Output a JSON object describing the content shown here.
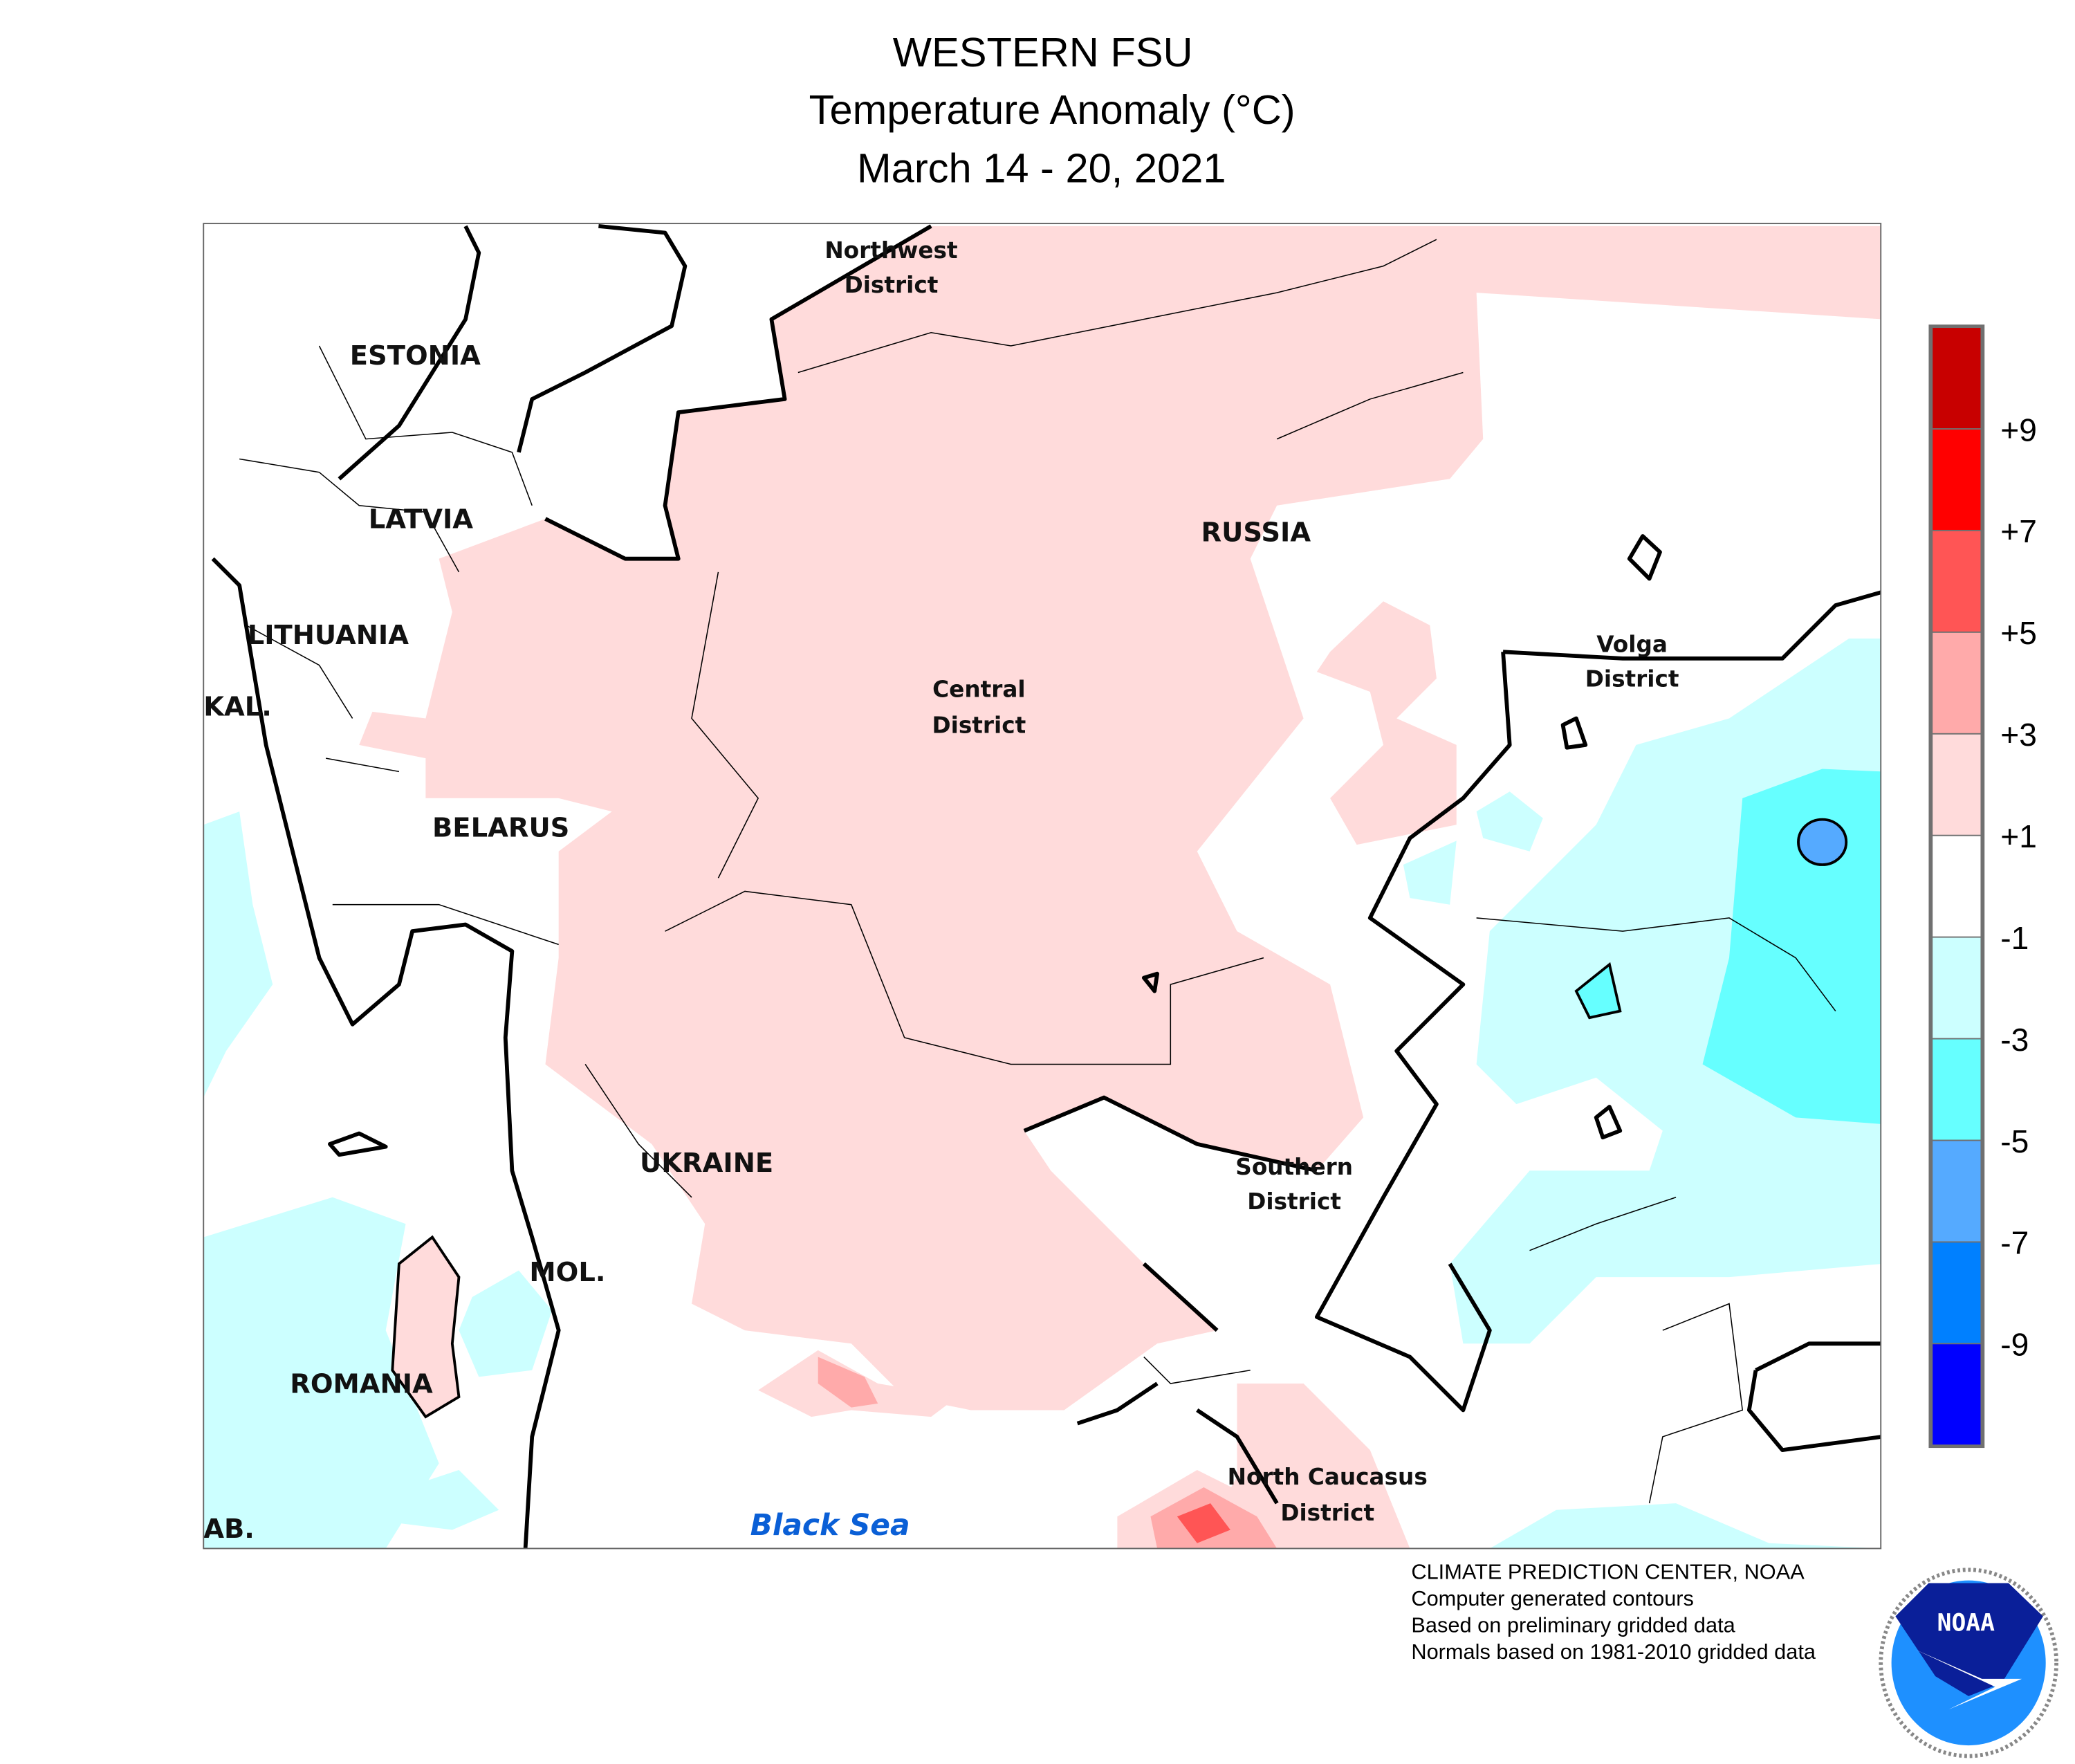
{
  "header": {
    "region": "WESTERN FSU",
    "variable": "Temperature Anomaly (°C)",
    "period": "March 14 - 20, 2021"
  },
  "map": {
    "country_labels": [
      "ESTONIA",
      "LATVIA",
      "LITHUANIA",
      "KAL.",
      "BELARUS",
      "RUSSIA",
      "UKRAINE",
      "MOL.",
      "ROMANIA",
      "AB."
    ],
    "district_labels": [
      [
        "Northwest",
        "District"
      ],
      [
        "Central",
        "District"
      ],
      [
        "Volga",
        "District"
      ],
      [
        "Southern",
        "District"
      ],
      [
        "North Caucasus",
        "District"
      ]
    ],
    "sea_label": "Black Sea"
  },
  "legend": {
    "colors": [
      "#c80000",
      "#ff0000",
      "#ff5555",
      "#ffaaaa",
      "#ffdbdb",
      "#ffffff",
      "#ccffff",
      "#66ffff",
      "#55aaff",
      "#0080ff",
      "#0000ff"
    ],
    "ticks": [
      "+9",
      "+7",
      "+5",
      "+3",
      "+1",
      "-1",
      "-3",
      "-5",
      "-7",
      "-9"
    ]
  },
  "footer": {
    "lines": [
      "CLIMATE PREDICTION CENTER, NOAA",
      "Computer generated contours",
      "Based on preliminary gridded data",
      "Normals based on 1981-2010 gridded data"
    ],
    "logo_text": "NOAA",
    "logo_ring_text": "NATIONAL OCEANIC AND ATMOSPHERIC ADMINISTRATION · U.S. DEPARTMENT OF COMMERCE"
  }
}
